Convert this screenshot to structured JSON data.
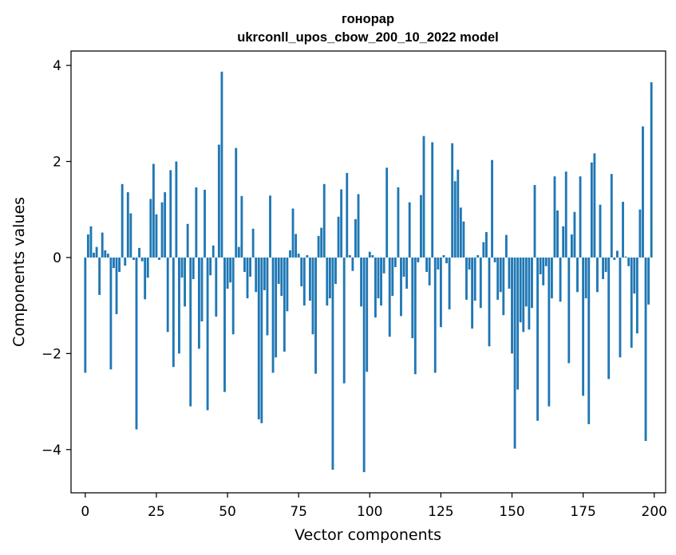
{
  "chart_data": {
    "type": "bar",
    "title": "гонорар",
    "subtitle": "ukrconll_upos_cbow_200_10_2022 model",
    "xlabel": "Vector components",
    "ylabel": "Components values",
    "xlim": [
      -5,
      204
    ],
    "ylim": [
      -4.9,
      4.3
    ],
    "xticks": [
      0,
      25,
      50,
      75,
      100,
      125,
      150,
      175,
      200
    ],
    "xtick_labels": [
      "0",
      "25",
      "50",
      "75",
      "100",
      "125",
      "150",
      "175",
      "200"
    ],
    "yticks": [
      -4,
      -2,
      0,
      2,
      4
    ],
    "ytick_labels": [
      "−4",
      "−2",
      "0",
      "2",
      "4"
    ],
    "grid": false,
    "bar_color": "#1f77b4",
    "values": [
      -2.4,
      0.48,
      0.65,
      0.1,
      0.22,
      -0.78,
      0.52,
      0.15,
      0.08,
      -2.33,
      -0.22,
      -1.18,
      -0.3,
      1.53,
      -0.17,
      1.36,
      0.92,
      -0.05,
      -3.58,
      0.2,
      -0.08,
      -0.87,
      -0.42,
      1.22,
      1.95,
      0.9,
      -0.05,
      1.15,
      1.36,
      -1.55,
      1.82,
      -2.28,
      2.0,
      -2.0,
      -0.42,
      -1.02,
      0.7,
      -3.1,
      -0.45,
      1.46,
      -1.9,
      -1.33,
      1.41,
      -3.18,
      -0.37,
      0.25,
      -1.23,
      2.35,
      3.87,
      -2.8,
      -0.65,
      -0.52,
      -1.6,
      2.28,
      0.22,
      1.28,
      -0.3,
      -0.85,
      -0.4,
      0.6,
      -0.72,
      -3.37,
      -3.45,
      -0.68,
      -1.62,
      1.29,
      -2.4,
      -2.08,
      -0.55,
      -0.8,
      -1.96,
      -1.12,
      0.15,
      1.02,
      0.49,
      0.08,
      -0.6,
      -1.0,
      0.05,
      -0.9,
      -1.6,
      -2.42,
      0.45,
      0.62,
      1.53,
      -1.0,
      -0.85,
      -4.42,
      -0.55,
      0.85,
      1.42,
      -2.62,
      1.76,
      0.05,
      -0.28,
      0.8,
      1.32,
      -1.02,
      -4.47,
      -2.38,
      0.12,
      0.05,
      -1.25,
      -0.85,
      -1.0,
      -0.33,
      1.87,
      -1.65,
      -0.8,
      -0.2,
      1.46,
      -1.22,
      -0.4,
      -0.65,
      1.15,
      -1.68,
      -2.43,
      -0.1,
      1.3,
      2.53,
      -0.3,
      -0.58,
      2.4,
      -2.4,
      -0.25,
      -1.45,
      0.05,
      -0.12,
      -1.08,
      2.38,
      1.59,
      1.83,
      1.04,
      0.75,
      -0.88,
      -0.25,
      -1.48,
      -0.9,
      0.05,
      -1.05,
      0.32,
      0.53,
      -1.85,
      2.03,
      -0.1,
      -0.88,
      -0.72,
      -1.2,
      0.47,
      -0.65,
      -2.0,
      -3.98,
      -2.75,
      -1.35,
      -1.55,
      -1.02,
      -1.5,
      -1.05,
      1.51,
      -3.4,
      -0.35,
      -0.58,
      -0.18,
      -3.1,
      -0.85,
      1.69,
      0.98,
      -0.92,
      0.65,
      1.79,
      -2.2,
      0.48,
      0.95,
      -0.72,
      1.69,
      -2.88,
      -0.85,
      -3.47,
      1.98,
      2.17,
      -0.72,
      1.1,
      -0.45,
      -0.3,
      -2.53,
      1.74,
      -0.05,
      0.14,
      -2.08,
      1.16,
      0.02,
      -0.18,
      -1.88,
      -0.75,
      -1.58,
      1.0,
      2.73,
      -3.82,
      -0.98,
      3.65
    ]
  }
}
